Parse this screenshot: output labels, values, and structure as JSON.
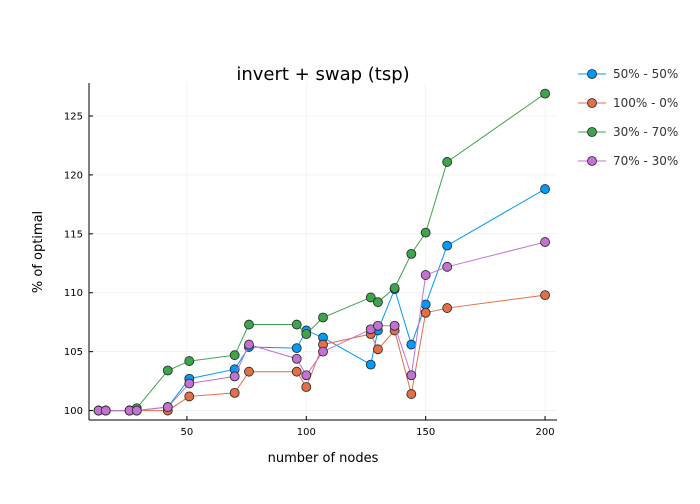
{
  "chart_data": {
    "type": "line",
    "title": "invert + swap (tsp)",
    "xlabel": "number of nodes",
    "ylabel": "% of optimal",
    "xlim": [
      9,
      205
    ],
    "ylim": [
      99.2,
      127.8
    ],
    "xticks": [
      50,
      100,
      150,
      200
    ],
    "yticks": [
      100,
      105,
      110,
      115,
      120,
      125
    ],
    "grid": true,
    "legend_position": "top-right-outside",
    "x": [
      13,
      16,
      26,
      29,
      42,
      51,
      70,
      76,
      96,
      100,
      107,
      127,
      130,
      137,
      144,
      150,
      159,
      200
    ],
    "series": [
      {
        "name": "50% - 50%",
        "color": "#009AFA",
        "values": [
          100.0,
          100.0,
          100.0,
          100.0,
          100.3,
          102.7,
          103.5,
          105.4,
          105.3,
          106.8,
          106.2,
          103.9,
          106.8,
          110.3,
          105.6,
          109.0,
          114.0,
          118.8
        ]
      },
      {
        "name": "100% - 0%",
        "color": "#E36F47",
        "values": [
          100.0,
          100.0,
          100.0,
          100.0,
          100.0,
          101.2,
          101.5,
          103.3,
          103.3,
          102.0,
          105.6,
          106.5,
          105.2,
          106.8,
          101.4,
          108.3,
          108.7,
          109.8
        ]
      },
      {
        "name": "30% - 70%",
        "color": "#3EA44E",
        "values": [
          100.0,
          100.0,
          100.0,
          100.2,
          103.4,
          104.2,
          104.7,
          107.3,
          107.3,
          106.5,
          107.9,
          109.6,
          109.2,
          110.4,
          113.3,
          115.1,
          121.1,
          126.9
        ]
      },
      {
        "name": "70% - 30%",
        "color": "#C371D2",
        "values": [
          100.0,
          100.0,
          100.0,
          100.0,
          100.3,
          102.3,
          102.9,
          105.6,
          104.4,
          103.0,
          105.0,
          106.9,
          107.2,
          107.2,
          103.0,
          111.5,
          112.2,
          114.3
        ]
      }
    ]
  }
}
